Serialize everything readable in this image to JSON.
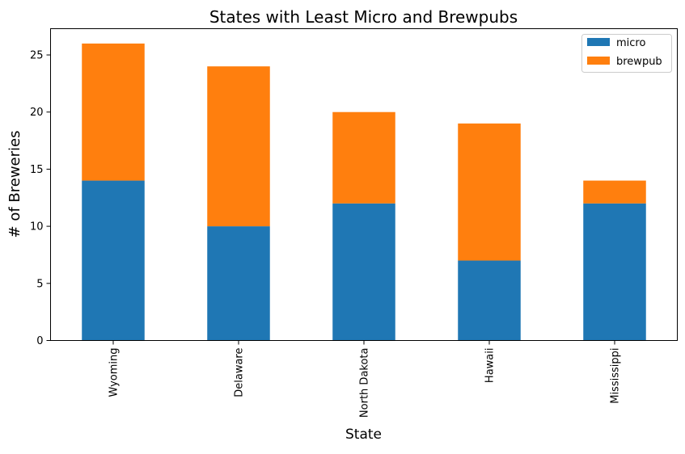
{
  "chart_data": {
    "type": "bar",
    "stacked": true,
    "title": "States with Least Micro and Brewpubs",
    "xlabel": "State",
    "ylabel": "# of Breweries",
    "categories": [
      "Wyoming",
      "Delaware",
      "North Dakota",
      "Hawaii",
      "Mississippi"
    ],
    "series": [
      {
        "name": "micro",
        "color": "#1f77b4",
        "values": [
          14,
          10,
          12,
          7,
          12
        ]
      },
      {
        "name": "brewpub",
        "color": "#ff7f0e",
        "values": [
          12,
          14,
          8,
          12,
          2
        ]
      }
    ],
    "ylim": [
      0,
      27.3
    ],
    "yticks": [
      0,
      5,
      10,
      15,
      20,
      25
    ],
    "grid": false,
    "legend_position": "top-right"
  }
}
